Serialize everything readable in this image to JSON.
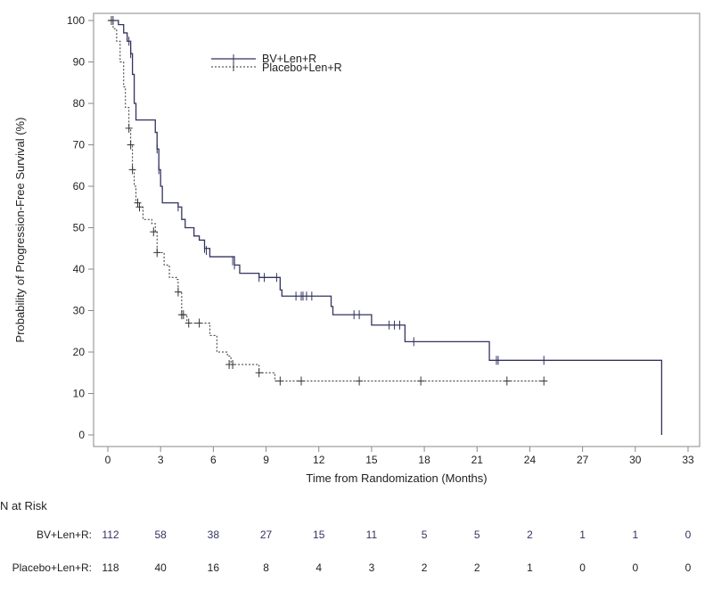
{
  "chart_data": {
    "type": "line",
    "subtype": "kaplan-meier",
    "title": "",
    "xlabel": "Time from Randomization (Months)",
    "ylabel": "Probability of Progression-Free Survival (%)",
    "xlim": [
      0,
      33
    ],
    "ylim": [
      0,
      100
    ],
    "xticks": [
      0,
      3,
      6,
      9,
      12,
      15,
      18,
      21,
      24,
      27,
      30,
      33
    ],
    "yticks": [
      0,
      10,
      20,
      30,
      40,
      50,
      60,
      70,
      80,
      90,
      100
    ],
    "grid": false,
    "legend_position": "top-center",
    "series": [
      {
        "name": "BV+Len+R",
        "color": "#33335f",
        "style": "solid",
        "steps": [
          [
            0,
            100
          ],
          [
            0.6,
            99
          ],
          [
            0.9,
            97
          ],
          [
            1.1,
            95
          ],
          [
            1.3,
            92
          ],
          [
            1.4,
            87
          ],
          [
            1.5,
            80
          ],
          [
            1.6,
            76
          ],
          [
            2.6,
            76
          ],
          [
            2.7,
            73
          ],
          [
            2.8,
            69
          ],
          [
            2.9,
            64
          ],
          [
            3.0,
            60
          ],
          [
            3.1,
            56
          ],
          [
            3.9,
            56
          ],
          [
            4.0,
            55
          ],
          [
            4.2,
            52
          ],
          [
            4.4,
            50
          ],
          [
            4.9,
            48
          ],
          [
            5.2,
            47
          ],
          [
            5.5,
            45
          ],
          [
            5.8,
            43
          ],
          [
            7.0,
            43
          ],
          [
            7.2,
            41
          ],
          [
            7.5,
            39
          ],
          [
            8.5,
            39
          ],
          [
            8.6,
            38
          ],
          [
            9.7,
            38
          ],
          [
            9.8,
            35
          ],
          [
            9.9,
            33.5
          ],
          [
            12.6,
            33.5
          ],
          [
            12.7,
            31
          ],
          [
            12.8,
            29
          ],
          [
            14.9,
            29
          ],
          [
            15.0,
            26.5
          ],
          [
            16.8,
            26.5
          ],
          [
            16.9,
            22.5
          ],
          [
            21.6,
            22.5
          ],
          [
            21.7,
            18
          ],
          [
            31.5,
            18
          ],
          [
            31.5,
            0
          ]
        ],
        "censored": [
          [
            0.3,
            100
          ],
          [
            1.2,
            95
          ],
          [
            1.3,
            92
          ],
          [
            2.8,
            69
          ],
          [
            2.9,
            64
          ],
          [
            4.0,
            55
          ],
          [
            5.5,
            45
          ],
          [
            5.6,
            44.5
          ],
          [
            7.1,
            42
          ],
          [
            7.2,
            41
          ],
          [
            8.6,
            38
          ],
          [
            8.9,
            38
          ],
          [
            9.6,
            38
          ],
          [
            10.7,
            33.5
          ],
          [
            11.0,
            33.5
          ],
          [
            11.1,
            33.5
          ],
          [
            11.3,
            33.5
          ],
          [
            11.6,
            33.5
          ],
          [
            14.0,
            29
          ],
          [
            14.3,
            29
          ],
          [
            16.0,
            26.5
          ],
          [
            16.3,
            26.5
          ],
          [
            16.6,
            26.5
          ],
          [
            17.4,
            22.5
          ],
          [
            22.1,
            18
          ],
          [
            22.2,
            18
          ],
          [
            24.8,
            18
          ]
        ]
      },
      {
        "name": "Placebo+Len+R",
        "color": "#333333",
        "style": "dotted",
        "steps": [
          [
            0,
            100
          ],
          [
            0.3,
            98
          ],
          [
            0.5,
            95
          ],
          [
            0.7,
            90
          ],
          [
            0.9,
            84
          ],
          [
            1.0,
            79
          ],
          [
            1.2,
            74
          ],
          [
            1.3,
            70
          ],
          [
            1.4,
            64
          ],
          [
            1.5,
            60
          ],
          [
            1.6,
            56
          ],
          [
            1.8,
            55
          ],
          [
            2.0,
            52
          ],
          [
            2.5,
            51
          ],
          [
            2.7,
            49
          ],
          [
            2.8,
            44
          ],
          [
            3.2,
            41
          ],
          [
            3.5,
            38
          ],
          [
            3.9,
            37.5
          ],
          [
            4.0,
            34.5
          ],
          [
            4.2,
            29
          ],
          [
            4.5,
            27
          ],
          [
            5.6,
            27
          ],
          [
            5.8,
            24
          ],
          [
            6.2,
            20
          ],
          [
            6.8,
            19
          ],
          [
            7.0,
            17
          ],
          [
            8.5,
            17
          ],
          [
            8.6,
            15
          ],
          [
            9.4,
            15
          ],
          [
            9.5,
            13
          ],
          [
            24.8,
            13
          ]
        ],
        "censored": [
          [
            0.2,
            100
          ],
          [
            1.2,
            74
          ],
          [
            1.3,
            70
          ],
          [
            1.4,
            64
          ],
          [
            1.7,
            56
          ],
          [
            1.8,
            55
          ],
          [
            2.6,
            49
          ],
          [
            2.8,
            44
          ],
          [
            4.0,
            34.5
          ],
          [
            4.2,
            29
          ],
          [
            4.3,
            29
          ],
          [
            4.6,
            27
          ],
          [
            5.2,
            27
          ],
          [
            6.9,
            17
          ],
          [
            7.1,
            17
          ],
          [
            8.6,
            15
          ],
          [
            9.8,
            13
          ],
          [
            11.0,
            13
          ],
          [
            14.3,
            13
          ],
          [
            17.8,
            13
          ],
          [
            22.7,
            13
          ],
          [
            24.8,
            13
          ]
        ]
      }
    ],
    "risk_table": {
      "title": "N at Risk",
      "times": [
        0,
        3,
        6,
        9,
        12,
        15,
        18,
        21,
        24,
        27,
        30,
        33
      ],
      "rows": [
        {
          "label": "BV+Len+R:",
          "color": "#33335f",
          "values": [
            "112",
            "58",
            "38",
            "27",
            "15",
            "11",
            "5",
            "5",
            "2",
            "1",
            "1",
            "0"
          ]
        },
        {
          "label": "Placebo+Len+R:",
          "color": "#222222",
          "values": [
            "118",
            "40",
            "16",
            "8",
            "4",
            "3",
            "2",
            "2",
            "1",
            "0",
            "0",
            "0"
          ]
        }
      ]
    }
  }
}
